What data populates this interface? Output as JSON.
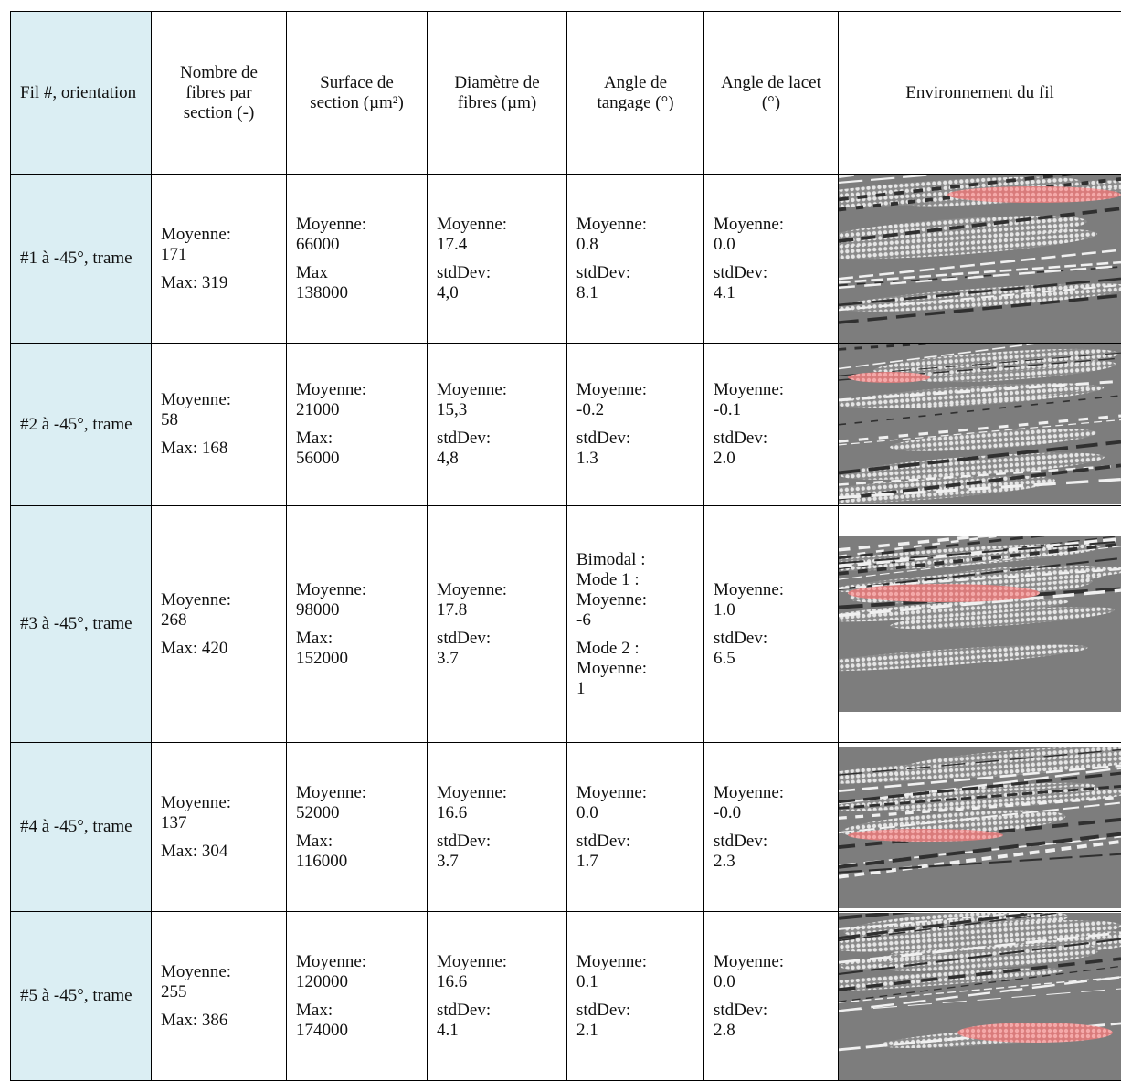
{
  "header": [
    "Fil #, orientation",
    "Nombre de fibres par section (-)",
    "Surface de section (µm²)",
    "Diamètre de fibres (µm)",
    "Angle de tangage (°)",
    "Angle de lacet (°)",
    "Environnement du fil"
  ],
  "rows": [
    {
      "label": "#1 à -45°, trame",
      "cells": [
        [
          [
            "Moyenne:",
            "171"
          ],
          [
            "Max: 319"
          ]
        ],
        [
          [
            "Moyenne:",
            "66000"
          ],
          [
            "Max",
            "138000"
          ]
        ],
        [
          [
            "Moyenne:",
            "17.4"
          ],
          [
            "stdDev:",
            "4,0"
          ]
        ],
        [
          [
            "Moyenne:",
            "0.8"
          ],
          [
            "stdDev:",
            "8.1"
          ]
        ],
        [
          [
            "Moyenne:",
            "0.0"
          ],
          [
            "stdDev:",
            "4.1"
          ]
        ]
      ]
    },
    {
      "label": "#2 à -45°, trame",
      "cells": [
        [
          [
            "Moyenne:",
            "58"
          ],
          [
            "Max: 168"
          ]
        ],
        [
          [
            "Moyenne:",
            "21000"
          ],
          [
            "Max:",
            "56000"
          ]
        ],
        [
          [
            "Moyenne:",
            "15,3"
          ],
          [
            "stdDev:",
            "4,8"
          ]
        ],
        [
          [
            "Moyenne:",
            "-0.2"
          ],
          [
            "stdDev:",
            "1.3"
          ]
        ],
        [
          [
            "Moyenne:",
            "-0.1"
          ],
          [
            "stdDev:",
            "2.0"
          ]
        ]
      ]
    },
    {
      "label": "#3 à -45°, trame",
      "cells": [
        [
          [
            "Moyenne:",
            "268"
          ],
          [
            "Max: 420"
          ]
        ],
        [
          [
            "Moyenne:",
            "98000"
          ],
          [
            "Max:",
            "152000"
          ]
        ],
        [
          [
            "Moyenne:",
            "17.8"
          ],
          [
            "stdDev:",
            "3.7"
          ]
        ],
        [
          [
            "Bimodal :",
            "Mode 1 :",
            "Moyenne:",
            "-6"
          ],
          [
            "Mode 2 :",
            "Moyenne:",
            "1"
          ]
        ],
        [
          [
            "Moyenne:",
            "1.0"
          ],
          [
            "stdDev:",
            "6.5"
          ]
        ]
      ]
    },
    {
      "label": "#4 à -45°, trame",
      "cells": [
        [
          [
            "Moyenne:",
            "137"
          ],
          [
            "Max: 304"
          ]
        ],
        [
          [
            "Moyenne:",
            "52000"
          ],
          [
            "Max:",
            "116000"
          ]
        ],
        [
          [
            "Moyenne:",
            "16.6"
          ],
          [
            "stdDev:",
            "3.7"
          ]
        ],
        [
          [
            "Moyenne:",
            "0.0"
          ],
          [
            "stdDev:",
            "1.7"
          ]
        ],
        [
          [
            "Moyenne:",
            "-0.0"
          ],
          [
            "stdDev:",
            "2.3"
          ]
        ]
      ]
    },
    {
      "label": "#5 à -45°, trame",
      "cells": [
        [
          [
            "Moyenne:",
            "255"
          ],
          [
            "Max: 386"
          ]
        ],
        [
          [
            "Moyenne:",
            "120000"
          ],
          [
            "Max:",
            "174000"
          ]
        ],
        [
          [
            "Moyenne:",
            "16.6"
          ],
          [
            "stdDev:",
            "4.1"
          ]
        ],
        [
          [
            "Moyenne:",
            "0.1"
          ],
          [
            "stdDev:",
            "2.1"
          ]
        ],
        [
          [
            "Moyenne:",
            "0.0"
          ],
          [
            "stdDev:",
            "2.8"
          ]
        ]
      ]
    }
  ]
}
